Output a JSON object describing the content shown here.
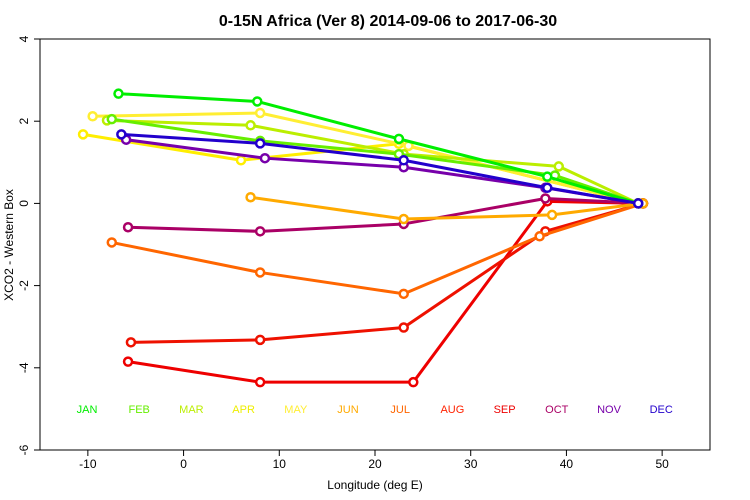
{
  "chart_data": {
    "type": "line",
    "title": "0-15N Africa (Ver 8)   2014-09-06 to 2017-06-30",
    "xlabel": "Longitude (deg E)",
    "ylabel": "XCO2 - Western Box",
    "xlim": [
      -15,
      55
    ],
    "ylim": [
      -6,
      4
    ],
    "xticks": [
      -10,
      0,
      10,
      20,
      30,
      40,
      50
    ],
    "yticks": [
      -6,
      -4,
      -2,
      0,
      2,
      4
    ],
    "grid": false,
    "months": [
      {
        "label": "JAN",
        "color": "#00ee00"
      },
      {
        "label": "FEB",
        "color": "#66ee00"
      },
      {
        "label": "MAR",
        "color": "#bbee00"
      },
      {
        "label": "APR",
        "color": "#eeee00"
      },
      {
        "label": "MAY",
        "color": "#ffee33"
      },
      {
        "label": "JUN",
        "color": "#ffaa00"
      },
      {
        "label": "JUL",
        "color": "#ff6600"
      },
      {
        "label": "AUG",
        "color": "#ff2200"
      },
      {
        "label": "SEP",
        "color": "#ee0000"
      },
      {
        "label": "OCT",
        "color": "#aa0066"
      },
      {
        "label": "NOV",
        "color": "#7700aa"
      },
      {
        "label": "DEC",
        "color": "#2200cc"
      }
    ],
    "series": [
      {
        "color": "#ee0000",
        "x": [
          -5.8,
          8.0,
          24.0,
          38.0,
          48.0
        ],
        "y": [
          -3.85,
          -4.35,
          -4.35,
          0.05,
          0.0
        ]
      },
      {
        "color": "#ee1100",
        "x": [
          -5.5,
          8.0,
          23.0,
          37.8,
          48.0
        ],
        "y": [
          -3.38,
          -3.32,
          -3.02,
          -0.68,
          0.0
        ]
      },
      {
        "color": "#ff6600",
        "x": [
          -7.5,
          8.0,
          23.0,
          37.2,
          48.0
        ],
        "y": [
          -0.95,
          -1.68,
          -2.2,
          -0.8,
          0.0
        ]
      },
      {
        "color": "#aa0066",
        "x": [
          -5.8,
          8.0,
          23.0,
          37.8,
          48.0
        ],
        "y": [
          -0.58,
          -0.68,
          -0.5,
          0.12,
          0.0
        ]
      },
      {
        "color": "#ffaa00",
        "x": [
          7.0,
          23.0,
          38.5,
          48.0
        ],
        "y": [
          0.15,
          -0.38,
          -0.28,
          0.0
        ]
      },
      {
        "color": "#ffee00",
        "x": [
          -10.5,
          6.0,
          22.5,
          47.5
        ],
        "y": [
          1.68,
          1.05,
          1.45,
          0.0
        ]
      },
      {
        "color": "#ffee33",
        "x": [
          -9.5,
          8.0,
          23.5,
          47.5
        ],
        "y": [
          2.12,
          2.2,
          1.4,
          0.0
        ]
      },
      {
        "color": "#bbee00",
        "x": [
          -8.0,
          7.0,
          23.0,
          39.2,
          47.5
        ],
        "y": [
          2.02,
          1.9,
          1.2,
          0.9,
          0.0
        ]
      },
      {
        "color": "#66ee00",
        "x": [
          -7.5,
          8.0,
          22.5,
          38.8,
          47.5
        ],
        "y": [
          2.05,
          1.52,
          1.2,
          0.68,
          0.0
        ]
      },
      {
        "color": "#00ee00",
        "x": [
          -6.8,
          7.7,
          22.5,
          38.0,
          47.5
        ],
        "y": [
          2.67,
          2.48,
          1.57,
          0.65,
          0.0
        ]
      },
      {
        "color": "#7700aa",
        "x": [
          -6.0,
          8.5,
          23.0,
          37.8,
          47.5
        ],
        "y": [
          1.55,
          1.1,
          0.88,
          0.38,
          0.0
        ]
      },
      {
        "color": "#2200cc",
        "x": [
          -6.5,
          8.0,
          23.0,
          38.0,
          47.5
        ],
        "y": [
          1.68,
          1.46,
          1.05,
          0.38,
          0.0
        ]
      }
    ]
  }
}
